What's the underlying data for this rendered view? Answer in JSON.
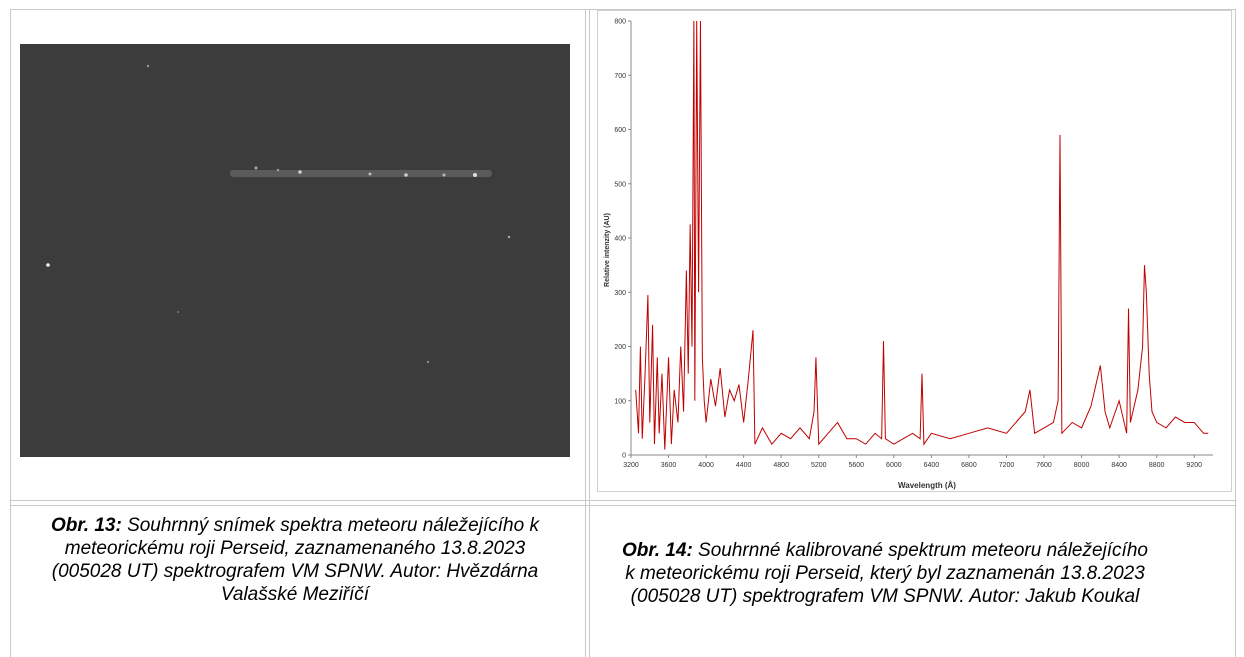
{
  "figures": [
    {
      "caption": {
        "label": "Obr. 13:",
        "text": "Souhrnný snímek spektra meteoru náležejícího k meteorickému roji Perseid, zaznamenaného 13.8.2023 (005028 UT) spektrografem VM SPNW. Autor: Hvězdárna Valašské Meziříčí"
      }
    },
    {
      "chart": {
        "type": "line",
        "xlabel": "Wavelength (Å)",
        "ylabel": "Relative intenzity (AU)",
        "color": "#c00000",
        "xlim": [
          3200,
          9400
        ],
        "xticks": [
          3200,
          3600,
          4000,
          4400,
          4800,
          5200,
          5600,
          6000,
          6400,
          6800,
          7200,
          7600,
          8000,
          8400,
          8800,
          9200
        ],
        "ylim": [
          0,
          800
        ],
        "yticks": [
          0,
          100,
          200,
          300,
          400,
          500,
          600,
          700,
          800
        ],
        "x": [
          3250,
          3280,
          3300,
          3320,
          3350,
          3380,
          3400,
          3430,
          3450,
          3480,
          3500,
          3530,
          3560,
          3600,
          3630,
          3660,
          3700,
          3730,
          3760,
          3790,
          3810,
          3830,
          3850,
          3870,
          3880,
          3900,
          3920,
          3940,
          3960,
          3980,
          4000,
          4050,
          4100,
          4150,
          4200,
          4250,
          4300,
          4350,
          4400,
          4450,
          4500,
          4520,
          4600,
          4700,
          4800,
          4900,
          5000,
          5100,
          5150,
          5170,
          5200,
          5300,
          5400,
          5500,
          5600,
          5700,
          5800,
          5870,
          5890,
          5910,
          6000,
          6100,
          6200,
          6280,
          6300,
          6320,
          6400,
          6600,
          6800,
          7000,
          7200,
          7400,
          7450,
          7500,
          7600,
          7700,
          7750,
          7770,
          7790,
          7900,
          8000,
          8100,
          8200,
          8250,
          8300,
          8400,
          8480,
          8500,
          8520,
          8600,
          8650,
          8670,
          8690,
          8720,
          8750,
          8800,
          8900,
          9000,
          9100,
          9200,
          9300,
          9350
        ],
        "values": [
          120,
          40,
          200,
          30,
          150,
          295,
          60,
          240,
          20,
          180,
          40,
          150,
          10,
          180,
          20,
          120,
          60,
          200,
          80,
          340,
          150,
          425,
          200,
          800,
          100,
          800,
          300,
          800,
          180,
          100,
          60,
          140,
          90,
          160,
          70,
          120,
          100,
          130,
          60,
          140,
          230,
          20,
          50,
          20,
          40,
          30,
          50,
          30,
          80,
          180,
          20,
          40,
          60,
          30,
          30,
          20,
          40,
          30,
          210,
          30,
          20,
          30,
          40,
          30,
          150,
          20,
          40,
          30,
          40,
          50,
          40,
          80,
          120,
          40,
          50,
          60,
          100,
          590,
          40,
          60,
          50,
          90,
          165,
          80,
          50,
          100,
          40,
          270,
          60,
          120,
          200,
          350,
          300,
          150,
          80,
          60,
          50,
          70,
          60,
          60,
          40,
          40
        ]
      },
      "caption": {
        "label": "Obr. 14:",
        "text": "Souhrnné kalibrované spektrum meteoru náležejícího k meteorickému roji Perseid, který byl zaznamenán 13.8.2023 (005028 UT) spektrografem VM SPNW. Autor: Jakub Koukal"
      }
    }
  ]
}
